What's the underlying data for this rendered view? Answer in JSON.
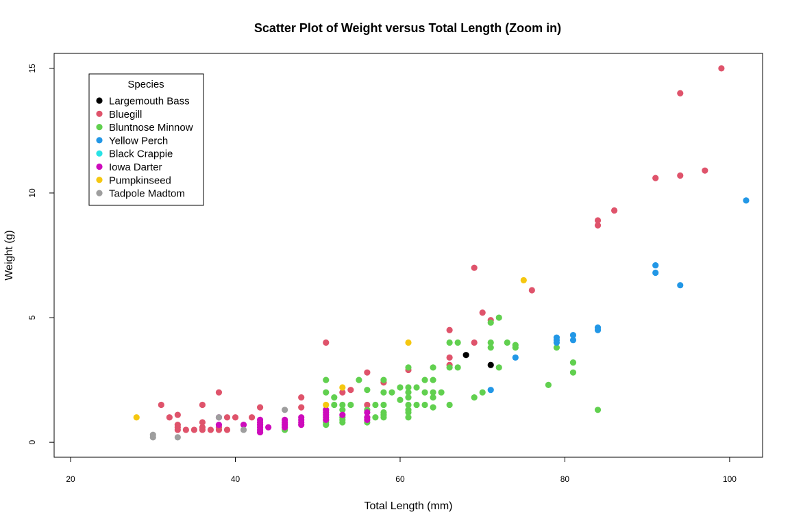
{
  "chart_data": {
    "type": "scatter",
    "title": "Scatter Plot of Weight versus Total Length (Zoom in)",
    "xlabel": "Total Length (mm)",
    "ylabel": "Weight (g)",
    "xlim": [
      18,
      104
    ],
    "ylim": [
      -0.6,
      15.6
    ],
    "xticks": [
      20,
      40,
      60,
      80,
      100
    ],
    "yticks": [
      0,
      5,
      10,
      15
    ],
    "grid": false,
    "legend": {
      "title": "Species",
      "placement": "top-left"
    },
    "series": [
      {
        "name": "Largemouth Bass",
        "color": "#000000",
        "points": [
          [
            68,
            3.5
          ],
          [
            71,
            3.1
          ]
        ]
      },
      {
        "name": "Bluegill",
        "color": "#DF536B",
        "points": [
          [
            99,
            15
          ],
          [
            94,
            14
          ],
          [
            97,
            10.9
          ],
          [
            94,
            10.7
          ],
          [
            91,
            10.6
          ],
          [
            86,
            9.3
          ],
          [
            84,
            8.9
          ],
          [
            84,
            8.7
          ],
          [
            69,
            7
          ],
          [
            76,
            6.1
          ],
          [
            70,
            5.2
          ],
          [
            71,
            4.9
          ],
          [
            66,
            4.5
          ],
          [
            51,
            4
          ],
          [
            69,
            4
          ],
          [
            66,
            3.4
          ],
          [
            66,
            3.1
          ],
          [
            61,
            2.9
          ],
          [
            56,
            2.8
          ],
          [
            58,
            2.4
          ],
          [
            54,
            2.1
          ],
          [
            53,
            2
          ],
          [
            38,
            2
          ],
          [
            48,
            1.8
          ],
          [
            31,
            1.5
          ],
          [
            36,
            1.5
          ],
          [
            56,
            1.5
          ],
          [
            33,
            1.1
          ],
          [
            32,
            1
          ],
          [
            39,
            1
          ],
          [
            40,
            1
          ],
          [
            42,
            1
          ],
          [
            43,
            1.4
          ],
          [
            48,
            1.4
          ],
          [
            33,
            0.7
          ],
          [
            33,
            0.6
          ],
          [
            33,
            0.5
          ],
          [
            34,
            0.5
          ],
          [
            35,
            0.5
          ],
          [
            36,
            0.5
          ],
          [
            36,
            0.6
          ],
          [
            36,
            0.8
          ],
          [
            37,
            0.5
          ],
          [
            38,
            0.5
          ],
          [
            38,
            0.6
          ],
          [
            39,
            0.5
          ]
        ]
      },
      {
        "name": "Bluntnose Minnow",
        "color": "#61D04F",
        "points": [
          [
            72,
            5
          ],
          [
            71,
            4.8
          ],
          [
            66,
            4
          ],
          [
            67,
            4
          ],
          [
            71,
            4
          ],
          [
            73,
            4
          ],
          [
            74,
            3.9
          ],
          [
            74,
            3.8
          ],
          [
            71,
            3.8
          ],
          [
            79,
            3.8
          ],
          [
            66,
            3
          ],
          [
            67,
            3
          ],
          [
            72,
            3
          ],
          [
            81,
            3.2
          ],
          [
            81,
            2.8
          ],
          [
            61,
            3
          ],
          [
            64,
            3
          ],
          [
            51,
            2.5
          ],
          [
            55,
            2.5
          ],
          [
            58,
            2.5
          ],
          [
            61,
            2.2
          ],
          [
            63,
            2.5
          ],
          [
            64,
            2.5
          ],
          [
            60,
            2.2
          ],
          [
            62,
            2.2
          ],
          [
            63,
            2
          ],
          [
            64,
            2
          ],
          [
            65,
            2
          ],
          [
            56,
            2.1
          ],
          [
            58,
            2
          ],
          [
            59,
            2
          ],
          [
            61,
            2
          ],
          [
            51,
            2
          ],
          [
            52,
            1.8
          ],
          [
            60,
            1.7
          ],
          [
            61,
            1.8
          ],
          [
            64,
            1.8
          ],
          [
            70,
            2
          ],
          [
            69,
            1.8
          ],
          [
            78,
            2.3
          ],
          [
            62,
            1.5
          ],
          [
            64,
            1.4
          ],
          [
            66,
            1.5
          ],
          [
            63,
            1.5
          ],
          [
            61,
            1.5
          ],
          [
            61,
            1.3
          ],
          [
            61,
            1.2
          ],
          [
            61,
            1
          ],
          [
            58,
            1.5
          ],
          [
            58,
            1.2
          ],
          [
            58,
            1.1
          ],
          [
            58,
            1
          ],
          [
            57,
            1.5
          ],
          [
            57,
            1
          ],
          [
            56,
            1.3
          ],
          [
            56,
            1
          ],
          [
            56,
            0.8
          ],
          [
            54,
            1.5
          ],
          [
            53,
            1.5
          ],
          [
            53,
            1.3
          ],
          [
            52,
            1.5
          ],
          [
            51,
            1.3
          ],
          [
            53,
            1
          ],
          [
            53,
            0.9
          ],
          [
            53,
            0.8
          ],
          [
            51,
            0.9
          ],
          [
            51,
            0.8
          ],
          [
            51,
            0.7
          ],
          [
            84,
            1.3
          ],
          [
            46,
            0.5
          ]
        ]
      },
      {
        "name": "Yellow Perch",
        "color": "#2297E6",
        "points": [
          [
            102,
            9.7
          ],
          [
            91,
            7.1
          ],
          [
            91,
            6.8
          ],
          [
            94,
            6.3
          ],
          [
            84,
            4.6
          ],
          [
            84,
            4.5
          ],
          [
            81,
            4.3
          ],
          [
            81,
            4.1
          ],
          [
            79,
            4.2
          ],
          [
            79,
            4.1
          ],
          [
            79,
            4
          ],
          [
            74,
            3.4
          ],
          [
            71,
            2.1
          ]
        ]
      },
      {
        "name": "Black Crappie",
        "color": "#28E2E5",
        "points": []
      },
      {
        "name": "Iowa Darter",
        "color": "#CD0BBC",
        "points": [
          [
            51,
            1.3
          ],
          [
            51,
            1.2
          ],
          [
            51,
            1.1
          ],
          [
            51,
            1
          ],
          [
            51,
            0.9
          ],
          [
            53,
            1.1
          ],
          [
            56,
            1.2
          ],
          [
            56,
            1
          ],
          [
            56,
            0.9
          ],
          [
            48,
            1
          ],
          [
            48,
            0.9
          ],
          [
            48,
            0.8
          ],
          [
            48,
            0.7
          ],
          [
            46,
            0.9
          ],
          [
            46,
            0.8
          ],
          [
            46,
            0.7
          ],
          [
            46,
            0.6
          ],
          [
            43,
            0.9
          ],
          [
            43,
            0.8
          ],
          [
            43,
            0.7
          ],
          [
            43,
            0.6
          ],
          [
            43,
            0.5
          ],
          [
            43,
            0.4
          ],
          [
            44,
            0.6
          ],
          [
            41,
            0.7
          ],
          [
            38,
            0.7
          ],
          [
            38,
            1
          ]
        ]
      },
      {
        "name": "Pumpkinseed",
        "color": "#F5C710",
        "points": [
          [
            28,
            1
          ],
          [
            51,
            1.5
          ],
          [
            53,
            2.2
          ],
          [
            61,
            4
          ],
          [
            75,
            6.5
          ]
        ]
      },
      {
        "name": "Tadpole Madtom",
        "color": "#9E9E9E",
        "points": [
          [
            30,
            0.3
          ],
          [
            30,
            0.2
          ],
          [
            33,
            0.2
          ],
          [
            38,
            1
          ],
          [
            41,
            0.5
          ],
          [
            46,
            1.3
          ]
        ]
      }
    ]
  }
}
